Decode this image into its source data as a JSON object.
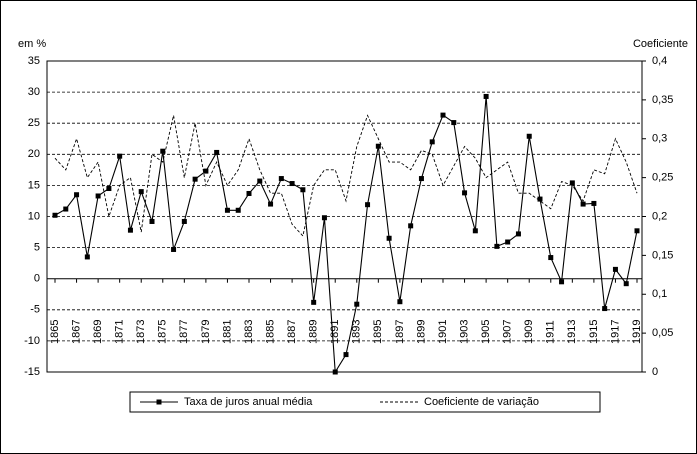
{
  "chart_data": {
    "type": "line",
    "y_label": "em %",
    "y2_label": "Coeficiente",
    "x": [
      1865,
      1866,
      1867,
      1868,
      1869,
      1870,
      1871,
      1872,
      1873,
      1874,
      1875,
      1876,
      1877,
      1878,
      1879,
      1880,
      1881,
      1882,
      1883,
      1884,
      1885,
      1886,
      1887,
      1888,
      1889,
      1890,
      1891,
      1892,
      1893,
      1894,
      1895,
      1896,
      1897,
      1898,
      1899,
      1900,
      1901,
      1902,
      1903,
      1904,
      1905,
      1906,
      1907,
      1908,
      1909,
      1910,
      1911,
      1912,
      1913,
      1914,
      1915,
      1916,
      1917,
      1918,
      1919
    ],
    "xlim": [
      1865,
      1919
    ],
    "xticks": [
      1865,
      1867,
      1869,
      1871,
      1873,
      1875,
      1877,
      1879,
      1881,
      1883,
      1885,
      1887,
      1889,
      1891,
      1893,
      1895,
      1897,
      1899,
      1901,
      1903,
      1905,
      1907,
      1909,
      1911,
      1913,
      1915,
      1917,
      1919
    ],
    "ylim": [
      -15,
      35
    ],
    "yticks": [
      -15,
      -10,
      -5,
      0,
      5,
      10,
      15,
      20,
      25,
      30,
      35
    ],
    "y2lim": [
      0,
      0.4
    ],
    "y2ticks": [
      0,
      {
        "value": 0.05,
        "label": "0,05"
      },
      {
        "value": 0.1,
        "label": "0,1"
      },
      {
        "value": 0.15,
        "label": "0,15"
      },
      {
        "value": 0.2,
        "label": "0,2"
      },
      {
        "value": 0.25,
        "label": "0,25"
      },
      {
        "value": 0.3,
        "label": "0,3"
      },
      {
        "value": 0.35,
        "label": "0,35"
      },
      {
        "value": 0.4,
        "label": "0,4"
      }
    ],
    "grid": true,
    "legend": "bottom",
    "series": [
      {
        "name": "Taxa de juros anual média",
        "color": "#000000",
        "marker": "square",
        "dashed": false,
        "values": [
          10.2,
          11.2,
          13.5,
          3.5,
          13.3,
          14.5,
          19.7,
          7.8,
          14,
          9.2,
          20.5,
          4.7,
          9.2,
          16,
          17.3,
          20.3,
          11,
          11,
          13.7,
          15.7,
          12,
          16.1,
          15.3,
          14.3,
          -3.8,
          9.8,
          -15,
          -12.2,
          -4.1,
          11.9,
          21.3,
          6.5,
          -3.7,
          8.5,
          16.1,
          22,
          26.3,
          25.1,
          13.8,
          7.7,
          29.3,
          5.2,
          5.9,
          7.2,
          22.9,
          12.8,
          3.4,
          -0.5,
          15.4,
          12,
          12.1,
          -4.8,
          1.5,
          -0.8,
          7.7
        ]
      },
      {
        "name": "Coeficiente de variação",
        "color": "#000000",
        "marker": "none",
        "dashed": true,
        "axis": "y2",
        "values": [
          0.275,
          0.26,
          0.3,
          0.25,
          0.27,
          0.2,
          0.24,
          0.25,
          0.18,
          0.28,
          0.27,
          0.33,
          0.25,
          0.32,
          0.24,
          0.27,
          0.24,
          0.26,
          0.3,
          0.26,
          0.23,
          0.23,
          0.19,
          0.175,
          0.24,
          0.26,
          0.26,
          0.22,
          0.29,
          0.33,
          0.3,
          0.27,
          0.27,
          0.26,
          0.285,
          0.28,
          0.24,
          0.265,
          0.29,
          0.275,
          0.25,
          0.26,
          0.27,
          0.23,
          0.23,
          0.22,
          0.21,
          0.245,
          0.24,
          0.22,
          0.26,
          0.255,
          0.3,
          0.27,
          0.23
        ]
      }
    ]
  }
}
